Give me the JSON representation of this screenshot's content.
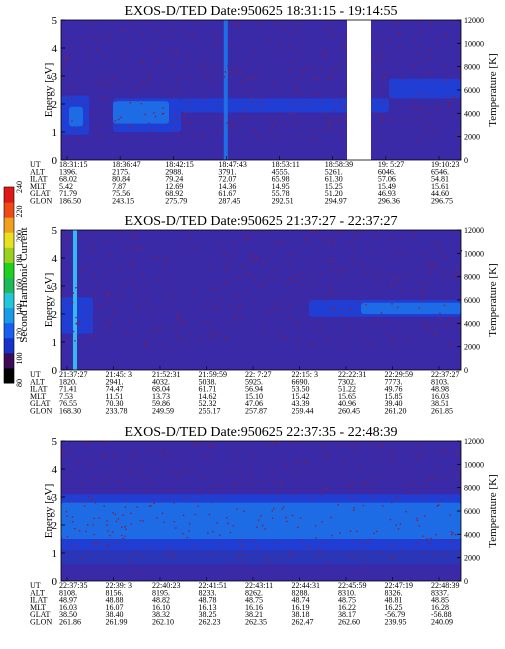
{
  "colors": {
    "background": "#3a2aa8",
    "band_mid": "#1f3fd6",
    "band_hi": "#1e6fe6",
    "streak": "#36b8f0",
    "speck": "#8a1d3c",
    "gap": "#ffffff"
  },
  "colorbar": {
    "label": "Second Harmonic Current",
    "ticks": [
      "80",
      "100",
      "120",
      "140",
      "160",
      "180",
      "200",
      "220",
      "240"
    ],
    "colors": [
      "#000000",
      "#3b0a58",
      "#1533c8",
      "#1a5ef0",
      "#1b9ae8",
      "#23c6d8",
      "#1fb85a",
      "#20d020",
      "#9ad020",
      "#e8e020",
      "#f0a020",
      "#ee4a18",
      "#e01818"
    ]
  },
  "chart_data": [
    {
      "type": "heatmap",
      "title": "EXOS-D/TED  Date:950625  18:31:15 - 19:14:55",
      "ylabel": "Energy [eV]",
      "y2label": "Temperature [K]",
      "ylim": [
        0,
        5
      ],
      "y2lim": [
        0,
        12000
      ],
      "yticks": [
        "0",
        "1",
        "2",
        "3",
        "4",
        "5"
      ],
      "y2ticks": [
        "0",
        "2000",
        "4000",
        "6000",
        "8000",
        "10000",
        "12000"
      ],
      "x_range": [
        "18:31:15",
        "19:14:55"
      ],
      "features": {
        "bands": [
          {
            "t0": 0.0,
            "t1": 0.07,
            "e0": 0.9,
            "e1": 2.3,
            "level": "mid"
          },
          {
            "t0": 0.13,
            "t1": 0.3,
            "e0": 1.0,
            "e1": 2.2,
            "level": "mid"
          },
          {
            "t0": 0.02,
            "t1": 0.055,
            "e0": 1.2,
            "e1": 1.9,
            "level": "hi"
          },
          {
            "t0": 0.13,
            "t1": 0.27,
            "e0": 1.3,
            "e1": 2.1,
            "level": "hi"
          },
          {
            "t0": 0.82,
            "t1": 1.0,
            "e0": 2.2,
            "e1": 2.9,
            "level": "mid"
          },
          {
            "t0": 0.3,
            "t1": 0.82,
            "e0": 1.7,
            "e1": 2.2,
            "level": "mid"
          }
        ],
        "streaks": [
          {
            "t": 0.412,
            "level": "hi"
          }
        ],
        "gaps": [
          {
            "t0": 0.715,
            "t1": 0.775
          }
        ]
      },
      "orbit": {
        "labels": [
          "UT",
          "ALT",
          "ILAT",
          "MLT",
          "GLAT",
          "GLON"
        ],
        "columns": [
          [
            "18:31:15",
            "1396.",
            "68.02",
            "5.42",
            "71.79",
            "186.50"
          ],
          [
            "18:36:47",
            "2175.",
            "80.84",
            "7.87",
            "75.56",
            "243.15"
          ],
          [
            "18:42:15",
            "2988.",
            "79.24",
            "12.69",
            "68.92",
            "275.79"
          ],
          [
            "18:47:43",
            "3791.",
            "72.07",
            "14.36",
            "61.67",
            "287.45"
          ],
          [
            "18:53:11",
            "4555.",
            "65.98",
            "14.95",
            "55.78",
            "292.51"
          ],
          [
            "18:58:39",
            "5261.",
            "61.30",
            "15.25",
            "51.20",
            "294.97"
          ],
          [
            "19:  5:27",
            "6046.",
            "57.06",
            "15.49",
            "46.93",
            "296.36"
          ],
          [
            "19:10:23",
            "6546.",
            "54.81",
            "15.61",
            "44.60",
            "296.75"
          ]
        ]
      }
    },
    {
      "type": "heatmap",
      "title": "EXOS-D/TED  Date:950625  21:37:27 - 22:37:27",
      "ylabel": "Energy [eV]",
      "y2label": "Temperature [K]",
      "ylim": [
        0,
        5
      ],
      "y2lim": [
        0,
        12000
      ],
      "yticks": [
        "0",
        "1",
        "2",
        "3",
        "4",
        "5"
      ],
      "y2ticks": [
        "0",
        "2000",
        "4000",
        "6000",
        "8000",
        "10000",
        "12000"
      ],
      "x_range": [
        "21:37:27",
        "22:37:27"
      ],
      "features": {
        "bands": [
          {
            "t0": 0.0,
            "t1": 0.08,
            "e0": 1.3,
            "e1": 2.6,
            "level": "mid"
          },
          {
            "t0": 0.62,
            "t1": 1.0,
            "e0": 1.9,
            "e1": 2.5,
            "level": "mid"
          },
          {
            "t0": 0.75,
            "t1": 1.0,
            "e0": 2.0,
            "e1": 2.4,
            "level": "hi"
          }
        ],
        "streaks": [
          {
            "t": 0.035,
            "level": "streak"
          }
        ],
        "gaps": []
      },
      "orbit": {
        "labels": [
          "UT",
          "ALT",
          "ILAT",
          "MLT",
          "GLAT",
          "GLON"
        ],
        "columns": [
          [
            "21:37:27",
            "1820.",
            "71.41",
            "7.53",
            "76.55",
            "168.30"
          ],
          [
            "21:45: 3",
            "2941.",
            "74.47",
            "11.51",
            "70.30",
            "233.78"
          ],
          [
            "21:52:31",
            "4032.",
            "68.04",
            "13.73",
            "59.86",
            "249.59"
          ],
          [
            "21:59:59",
            "5038.",
            "61.71",
            "14.62",
            "52.32",
            "255.17"
          ],
          [
            "22:  7:27",
            "5925.",
            "56.94",
            "15.10",
            "47.06",
            "257.87"
          ],
          [
            "22:15: 3",
            "6690.",
            "53.50",
            "15.42",
            "43.39",
            "259.44"
          ],
          [
            "22:22:31",
            "7302.",
            "51.22",
            "15.65",
            "40.96",
            "260.45"
          ],
          [
            "22:29:59",
            "7773.",
            "49.76",
            "15.85",
            "39.40",
            "261.20"
          ],
          [
            "22:37:27",
            "8103.",
            "48.98",
            "16.03",
            "38.51",
            "261.85"
          ]
        ]
      }
    },
    {
      "type": "heatmap",
      "title": "EXOS-D/TED  Date:950625  22:37:35 - 22:48:39",
      "ylabel": "Energy [eV]",
      "y2label": "Temperature [K]",
      "ylim": [
        0,
        5
      ],
      "y2lim": [
        0,
        12000
      ],
      "yticks": [
        "0",
        "1",
        "2",
        "3",
        "4",
        "5"
      ],
      "y2ticks": [
        "0",
        "2000",
        "4000",
        "6000",
        "8000",
        "10000",
        "12000"
      ],
      "x_range": [
        "22:37:35",
        "22:48:39"
      ],
      "features": {
        "bands": [
          {
            "t0": 0.0,
            "t1": 1.0,
            "e0": 1.1,
            "e1": 3.1,
            "level": "mid"
          },
          {
            "t0": 0.0,
            "t1": 1.0,
            "e0": 1.5,
            "e1": 2.8,
            "level": "hi"
          },
          {
            "t0": 0.0,
            "t1": 1.0,
            "e0": 0.6,
            "e1": 1.1,
            "level": "low"
          }
        ],
        "streaks": [],
        "gaps": []
      },
      "orbit": {
        "labels": [
          "UT",
          "ALT",
          "ILAT",
          "MLT",
          "GLAT",
          "GLON"
        ],
        "columns": [
          [
            "22:37:35",
            "8108.",
            "48.97",
            "16.03",
            "38.50",
            "261.86"
          ],
          [
            "22:39: 3",
            "8156.",
            "48.88",
            "16.07",
            "38.40",
            "261.99"
          ],
          [
            "22:40:23",
            "8195.",
            "48.82",
            "16.10",
            "38.32",
            "262.10"
          ],
          [
            "22:41:51",
            "8233.",
            "48.78",
            "16.13",
            "38.25",
            "262.23"
          ],
          [
            "22:43:11",
            "8262.",
            "48.75",
            "16.16",
            "38.21",
            "262.35"
          ],
          [
            "22:44:31",
            "8288.",
            "48.74",
            "16.19",
            "38.18",
            "262.47"
          ],
          [
            "22:45:59",
            "8310.",
            "48.75",
            "16.22",
            "38.17",
            "262.60"
          ],
          [
            "22:47:19",
            "8326.",
            "48.81",
            "16.25",
            "-56.79",
            "239.95"
          ],
          [
            "22:48:39",
            "8337.",
            "48.85",
            "16.28",
            "-56.88",
            "240.09"
          ]
        ]
      }
    }
  ]
}
